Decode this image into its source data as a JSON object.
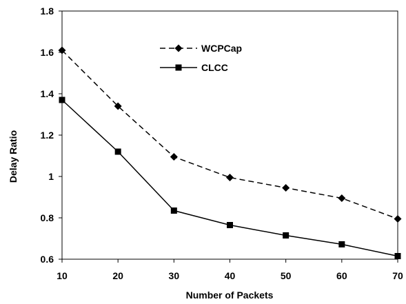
{
  "chart_data": {
    "type": "line",
    "xlabel": "Number of Packets",
    "ylabel": "Delay Ratio",
    "xlim": [
      10,
      70
    ],
    "ylim": [
      0.6,
      1.8
    ],
    "x_ticks": [
      "10",
      "20",
      "30",
      "40",
      "50",
      "60",
      "70"
    ],
    "y_ticks": [
      "0.6",
      "0.8",
      "1",
      "1.2",
      "1.4",
      "1.6",
      "1.8"
    ],
    "x_tick_values": [
      10,
      20,
      30,
      40,
      50,
      60,
      70
    ],
    "y_tick_values": [
      0.6,
      0.8,
      1.0,
      1.2,
      1.4,
      1.6,
      1.8
    ],
    "grid": false,
    "legend_position": "top-center",
    "x": [
      10,
      20,
      30,
      40,
      50,
      60,
      70
    ],
    "series": [
      {
        "name": "WCPCap",
        "values": [
          1.61,
          1.34,
          1.095,
          0.995,
          0.945,
          0.895,
          0.795
        ],
        "line_style": "dashed",
        "marker": "diamond",
        "color": "#000000"
      },
      {
        "name": "CLCC",
        "values": [
          1.37,
          1.12,
          0.835,
          0.765,
          0.715,
          0.672,
          0.615
        ],
        "line_style": "solid",
        "marker": "square",
        "color": "#000000"
      }
    ]
  }
}
